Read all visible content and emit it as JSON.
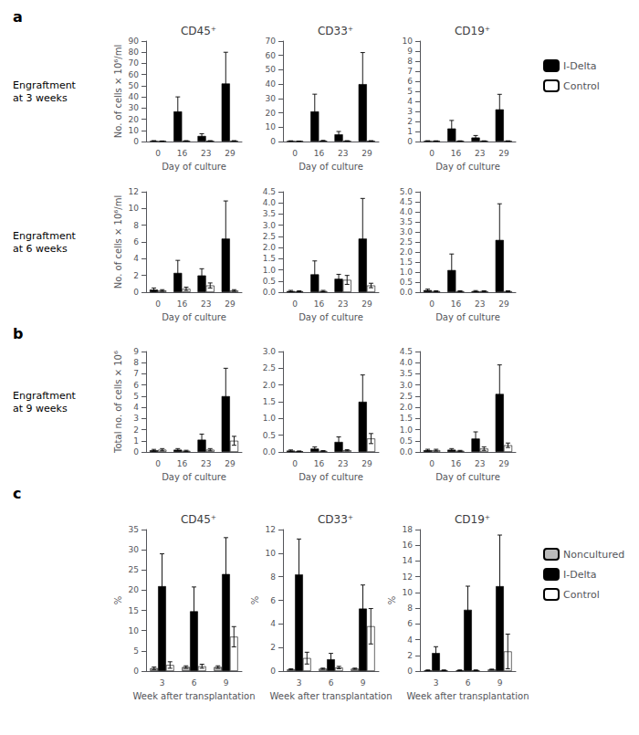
{
  "chart_data": [
    {
      "type": "bar",
      "title": "CD45⁺",
      "panel_label": "a",
      "row_label": "Engraftment\nat 3 weeks",
      "xlabel": "Day of culture",
      "ylabel": "No. of cells × 10⁶/ml",
      "categories": [
        "0",
        "16",
        "23",
        "29"
      ],
      "series": [
        {
          "name": "I-Delta",
          "color": "black",
          "values": [
            0.5,
            27,
            5,
            52
          ],
          "errors": [
            0.3,
            13,
            2,
            28
          ]
        },
        {
          "name": "Control",
          "color": "white",
          "values": [
            0.3,
            0.5,
            0.5,
            0.5
          ],
          "errors": [
            0.2,
            0.3,
            0.3,
            0.3
          ]
        }
      ],
      "ylim": [
        0,
        90
      ],
      "yticks": [
        0,
        10,
        20,
        30,
        40,
        50,
        60,
        70,
        80,
        90
      ],
      "grid": false
    },
    {
      "type": "bar",
      "title": "CD33⁺",
      "xlabel": "Day of culture",
      "categories": [
        "0",
        "16",
        "23",
        "29"
      ],
      "series": [
        {
          "name": "I-Delta",
          "color": "black",
          "values": [
            0.3,
            21,
            5,
            40
          ],
          "errors": [
            0.2,
            12,
            2,
            22
          ]
        },
        {
          "name": "Control",
          "color": "white",
          "values": [
            0.2,
            0.5,
            0.4,
            0.4
          ],
          "errors": [
            0.1,
            0.3,
            0.2,
            0.2
          ]
        }
      ],
      "ylim": [
        0,
        70
      ],
      "yticks": [
        0,
        10,
        20,
        30,
        40,
        50,
        60,
        70
      ],
      "grid": false
    },
    {
      "type": "bar",
      "title": "CD19⁺",
      "legend": "right",
      "xlabel": "Day of culture",
      "categories": [
        "0",
        "16",
        "23",
        "29"
      ],
      "series": [
        {
          "name": "I-Delta",
          "color": "black",
          "values": [
            0.05,
            1.3,
            0.4,
            3.2
          ],
          "errors": [
            0.03,
            0.8,
            0.2,
            1.5
          ]
        },
        {
          "name": "Control",
          "color": "white",
          "values": [
            0.05,
            0.05,
            0.05,
            0.05
          ],
          "errors": [
            0.02,
            0.02,
            0.02,
            0.02
          ]
        }
      ],
      "ylim": [
        0,
        10
      ],
      "yticks": [
        0,
        1,
        2,
        3,
        4,
        5,
        6,
        7,
        8,
        9,
        10
      ],
      "grid": false
    },
    {
      "type": "bar",
      "row_label": "Engraftment\nat 6 weeks",
      "xlabel": "Day of culture",
      "ylabel": "No. of cells × 10⁶/ml",
      "categories": [
        "0",
        "16",
        "23",
        "29"
      ],
      "series": [
        {
          "name": "I-Delta",
          "color": "black",
          "values": [
            0.3,
            2.3,
            2.0,
            6.4
          ],
          "errors": [
            0.2,
            1.5,
            0.8,
            4.5
          ]
        },
        {
          "name": "Control",
          "color": "white",
          "values": [
            0.2,
            0.4,
            0.8,
            0.2
          ],
          "errors": [
            0.1,
            0.2,
            0.3,
            0.1
          ]
        }
      ],
      "ylim": [
        0,
        12
      ],
      "yticks": [
        0,
        2,
        4,
        6,
        8,
        10,
        12
      ],
      "grid": false
    },
    {
      "type": "bar",
      "xlabel": "Day of culture",
      "categories": [
        "0",
        "16",
        "23",
        "29"
      ],
      "series": [
        {
          "name": "I-Delta",
          "color": "black",
          "values": [
            0.05,
            0.8,
            0.6,
            2.4
          ],
          "errors": [
            0.03,
            0.6,
            0.2,
            1.8
          ]
        },
        {
          "name": "Control",
          "color": "white",
          "values": [
            0.04,
            0.05,
            0.55,
            0.3
          ],
          "errors": [
            0.02,
            0.03,
            0.2,
            0.1
          ]
        }
      ],
      "ylim": [
        0,
        4.5
      ],
      "yticks": [
        {
          "value": 0,
          "label": "0.0"
        },
        0.5,
        {
          "value": 1,
          "label": "1.0"
        },
        1.5,
        {
          "value": 2,
          "label": "2.0"
        },
        2.5,
        {
          "value": 3,
          "label": "3.0"
        },
        3.5,
        {
          "value": 4,
          "label": "4.0"
        },
        4.5
      ],
      "grid": false
    },
    {
      "type": "bar",
      "xlabel": "Day of culture",
      "categories": [
        "0",
        "16",
        "23",
        "29"
      ],
      "series": [
        {
          "name": "I-Delta",
          "color": "black",
          "values": [
            0.1,
            1.1,
            0.05,
            2.6
          ],
          "errors": [
            0.05,
            0.8,
            0.03,
            1.8
          ]
        },
        {
          "name": "Control",
          "color": "white",
          "values": [
            0.05,
            0.05,
            0.05,
            0.05
          ],
          "errors": [
            0.02,
            0.02,
            0.02,
            0.02
          ]
        }
      ],
      "ylim": [
        0,
        5
      ],
      "yticks": [
        {
          "value": 0,
          "label": "0.0"
        },
        0.5,
        {
          "value": 1,
          "label": "1.0"
        },
        1.5,
        {
          "value": 2,
          "label": "2.0"
        },
        2.5,
        {
          "value": 3,
          "label": "3.0"
        },
        3.5,
        {
          "value": 4,
          "label": "4.0"
        },
        4.5,
        {
          "value": 5,
          "label": "5.0"
        }
      ],
      "grid": false
    },
    {
      "type": "bar",
      "panel_label": "b",
      "row_label": "Engraftment\nat 9 weeks",
      "xlabel": "Day of culture",
      "ylabel": "Total no. of cells × 10⁶",
      "categories": [
        "0",
        "16",
        "23",
        "29"
      ],
      "series": [
        {
          "name": "I-Delta",
          "color": "black",
          "values": [
            0.15,
            0.2,
            1.1,
            5.0
          ],
          "errors": [
            0.08,
            0.1,
            0.5,
            2.5
          ]
        },
        {
          "name": "Control",
          "color": "white",
          "values": [
            0.2,
            0.1,
            0.2,
            1.0
          ],
          "errors": [
            0.1,
            0.05,
            0.1,
            0.4
          ]
        }
      ],
      "ylim": [
        0,
        9
      ],
      "yticks": [
        0,
        1,
        2,
        3,
        4,
        5,
        6,
        7,
        8,
        9
      ],
      "grid": false
    },
    {
      "type": "bar",
      "xlabel": "Day of culture",
      "categories": [
        "0",
        "16",
        "23",
        "29"
      ],
      "series": [
        {
          "name": "I-Delta",
          "color": "black",
          "values": [
            0.04,
            0.1,
            0.3,
            1.5
          ],
          "errors": [
            0.02,
            0.05,
            0.15,
            0.8
          ]
        },
        {
          "name": "Control",
          "color": "white",
          "values": [
            0.02,
            0.03,
            0.05,
            0.4
          ],
          "errors": [
            0.01,
            0.01,
            0.02,
            0.15
          ]
        }
      ],
      "ylim": [
        0,
        3
      ],
      "yticks": [
        {
          "value": 0,
          "label": "0.0"
        },
        0.5,
        {
          "value": 1,
          "label": "1.0"
        },
        1.5,
        {
          "value": 2,
          "label": "2.0"
        },
        2.5,
        {
          "value": 3,
          "label": "3.0"
        }
      ],
      "grid": false
    },
    {
      "type": "bar",
      "xlabel": "Day of culture",
      "categories": [
        "0",
        "16",
        "23",
        "29"
      ],
      "series": [
        {
          "name": "I-Delta",
          "color": "black",
          "values": [
            0.08,
            0.1,
            0.6,
            2.6
          ],
          "errors": [
            0.04,
            0.05,
            0.3,
            1.3
          ]
        },
        {
          "name": "Control",
          "color": "white",
          "values": [
            0.08,
            0.05,
            0.15,
            0.3
          ],
          "errors": [
            0.04,
            0.02,
            0.08,
            0.1
          ]
        }
      ],
      "ylim": [
        0,
        4.5
      ],
      "yticks": [
        {
          "value": 0,
          "label": "0.0"
        },
        0.5,
        {
          "value": 1,
          "label": "1.0"
        },
        1.5,
        {
          "value": 2,
          "label": "2.0"
        },
        2.5,
        {
          "value": 3,
          "label": "3.0"
        },
        3.5,
        {
          "value": 4,
          "label": "4.0"
        },
        4.5
      ],
      "grid": false
    },
    {
      "type": "bar",
      "title": "CD45⁺",
      "panel_label": "c",
      "xlabel": "Week after transplantation",
      "ylabel": "%",
      "categories": [
        "3",
        "6",
        "9"
      ],
      "series": [
        {
          "name": "Noncultured",
          "color": "#bbbbbb",
          "values": [
            0.7,
            1.0,
            1.0
          ],
          "errors": [
            0.3,
            0.3,
            0.3
          ]
        },
        {
          "name": "I-Delta",
          "color": "black",
          "values": [
            21,
            14.8,
            24
          ],
          "errors": [
            8,
            6,
            9
          ]
        },
        {
          "name": "Control",
          "color": "white",
          "values": [
            1.5,
            1.2,
            8.5
          ],
          "errors": [
            0.8,
            0.5,
            2.5
          ]
        }
      ],
      "ylim": [
        0,
        35
      ],
      "yticks": [
        0,
        5,
        10,
        15,
        20,
        25,
        30,
        35
      ],
      "grid": false
    },
    {
      "type": "bar",
      "title": "CD33⁺",
      "xlabel": "Week after transplantation",
      "ylabel": "%",
      "categories": [
        "3",
        "6",
        "9"
      ],
      "series": [
        {
          "name": "Noncultured",
          "color": "#bbbbbb",
          "values": [
            0.15,
            0.2,
            0.2
          ],
          "errors": [
            0.05,
            0.05,
            0.05
          ]
        },
        {
          "name": "I-Delta",
          "color": "black",
          "values": [
            8.2,
            1.0,
            5.3
          ],
          "errors": [
            3.0,
            0.5,
            2.0
          ]
        },
        {
          "name": "Control",
          "color": "white",
          "values": [
            1.1,
            0.3,
            3.8
          ],
          "errors": [
            0.5,
            0.1,
            1.5
          ]
        }
      ],
      "ylim": [
        0,
        12
      ],
      "yticks": [
        0,
        2,
        4,
        6,
        8,
        10,
        12
      ],
      "grid": false
    },
    {
      "type": "bar",
      "title": "CD19⁺",
      "legend": "right",
      "xlabel": "Week after transplantation",
      "ylabel": "%",
      "categories": [
        "3",
        "6",
        "9"
      ],
      "series": [
        {
          "name": "Noncultured",
          "color": "#bbbbbb",
          "values": [
            0.1,
            0.1,
            0.2
          ],
          "errors": [
            0.05,
            0.05,
            0.05
          ]
        },
        {
          "name": "I-Delta",
          "color": "black",
          "values": [
            2.3,
            7.8,
            10.8
          ],
          "errors": [
            0.8,
            3.0,
            6.5
          ]
        },
        {
          "name": "Control",
          "color": "white",
          "values": [
            0.1,
            0.1,
            2.5
          ],
          "errors": [
            0.05,
            0.05,
            2.2
          ]
        }
      ],
      "ylim": [
        0,
        18
      ],
      "yticks": [
        0,
        2,
        4,
        6,
        8,
        10,
        12,
        14,
        16,
        18
      ],
      "grid": false
    }
  ]
}
